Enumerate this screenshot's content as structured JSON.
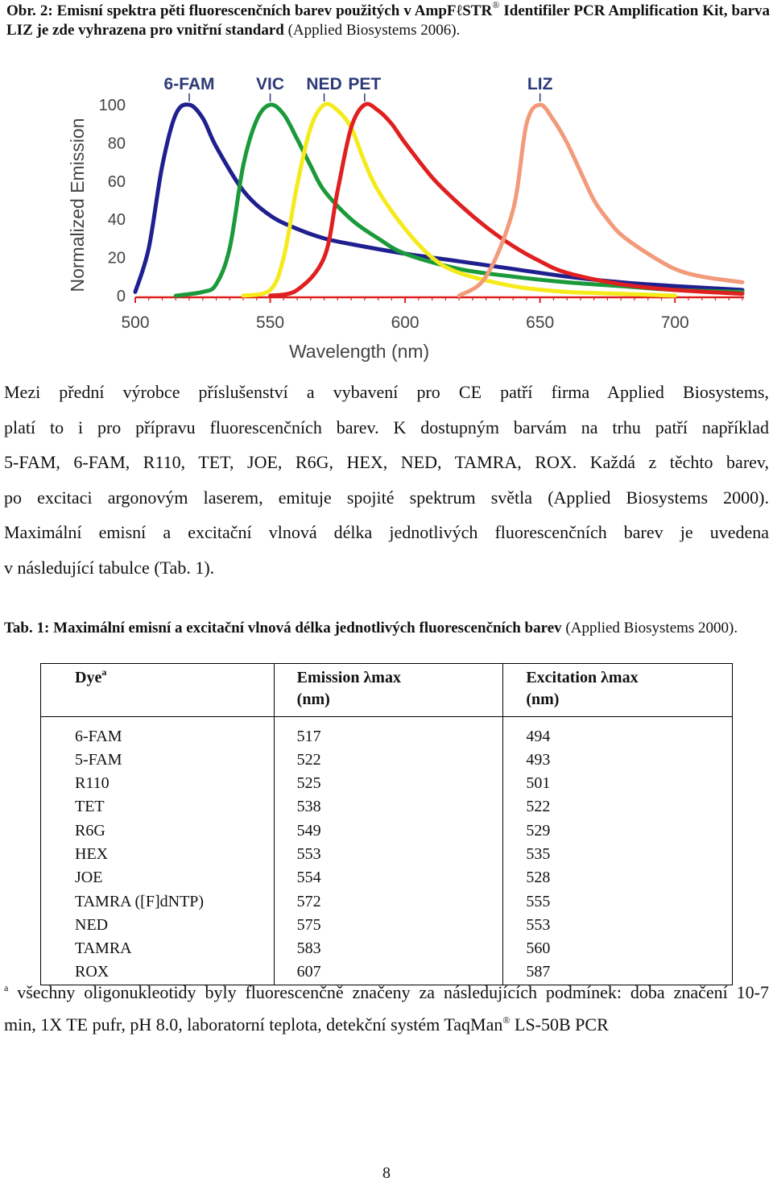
{
  "caption": {
    "label": "Obr. 2: Emisní spektra pěti fluorescenčních barev použitých v AmpFℓSTR",
    "registered": "®",
    "bold_rest": " Identifiler PCR Amplification Kit, barva LIZ je zde vyhrazena pro vnitřní standard",
    "source": " (Applied Biosystems 2006)."
  },
  "chart_data": {
    "type": "line",
    "ylabel": "Normalized Emission",
    "xlabel": "Wavelength (nm)",
    "xlim": [
      500,
      725
    ],
    "ylim": [
      0,
      100
    ],
    "x_ticks": [
      500,
      550,
      600,
      650,
      700
    ],
    "y_ticks": [
      0,
      20,
      40,
      60,
      80,
      100
    ],
    "legend_placement": "top labels above peaks",
    "series": [
      {
        "name": "6-FAM",
        "color": "#1f1f8f",
        "x": [
          500,
          505,
          510,
          515,
          520,
          525,
          530,
          540,
          550,
          560,
          570,
          580,
          600,
          620,
          640,
          660,
          680,
          700,
          725
        ],
        "y": [
          2,
          25,
          68,
          95,
          100,
          93,
          78,
          55,
          42,
          35,
          30,
          27,
          22,
          18,
          14,
          10,
          7,
          5,
          3
        ]
      },
      {
        "name": "VIC",
        "color": "#1a9a3a",
        "x": [
          515,
          525,
          530,
          535,
          540,
          545,
          550,
          555,
          560,
          565,
          570,
          580,
          590,
          600,
          620,
          640,
          660,
          680,
          700,
          725
        ],
        "y": [
          0,
          2,
          6,
          25,
          68,
          92,
          100,
          95,
          82,
          68,
          55,
          40,
          30,
          22,
          14,
          10,
          7,
          5,
          3,
          2
        ]
      },
      {
        "name": "NED",
        "color": "#f5ea1a",
        "x": [
          540,
          550,
          555,
          560,
          565,
          570,
          575,
          580,
          585,
          590,
          600,
          610,
          620,
          640,
          660,
          680,
          700
        ],
        "y": [
          0,
          3,
          20,
          58,
          88,
          100,
          97,
          88,
          70,
          55,
          35,
          20,
          12,
          5,
          2,
          1,
          0
        ]
      },
      {
        "name": "PET",
        "color": "#e02020",
        "x": [
          550,
          560,
          570,
          575,
          580,
          585,
          590,
          595,
          600,
          610,
          620,
          630,
          640,
          650,
          660,
          680,
          700,
          725
        ],
        "y": [
          0,
          3,
          20,
          55,
          88,
          100,
          97,
          90,
          80,
          62,
          48,
          36,
          26,
          18,
          12,
          6,
          3,
          1
        ]
      },
      {
        "name": "LIZ",
        "color": "#f29a7a",
        "x": [
          620,
          630,
          640,
          645,
          650,
          655,
          660,
          665,
          670,
          675,
          680,
          690,
          700,
          710,
          725
        ],
        "y": [
          0,
          10,
          45,
          90,
          100,
          92,
          80,
          65,
          50,
          40,
          32,
          22,
          14,
          10,
          7
        ]
      }
    ]
  },
  "paragraph": {
    "lines": [
      "Mezi přední výrobce příslušenství a vybavení pro CE patří firma Applied Biosystems,",
      "platí to i pro přípravu fluorescenčních barev. K dostupným barvám na trhu patří například",
      "5-FAM, 6-FAM, R110, TET, JOE, R6G, HEX, NED, TAMRA, ROX. Každá z těchto barev,",
      "po excitaci argonovým laserem, emituje spojité spektrum světla (Applied Biosystems 2000).",
      "Maximální emisní a excitační vlnová délka jednotlivých fluorescenčních barev je uvedena",
      "v následující tabulce (Tab. 1)."
    ]
  },
  "table_caption": {
    "bold": "Tab. 1: Maximální emisní a excitační vlnová délka jednotlivých fluorescenčních barev",
    "source": " (Applied Biosystems 2000)."
  },
  "table": {
    "headers": {
      "dye": "Dye",
      "dye_sup": "a",
      "emission_line1": "Emission λmax",
      "emission_line2": "(nm)",
      "excitation_line1": "Excitation λmax",
      "excitation_line2": "(nm)"
    },
    "rows": [
      {
        "dye": "6-FAM",
        "emission": "517",
        "excitation": "494"
      },
      {
        "dye": "5-FAM",
        "emission": "522",
        "excitation": "493"
      },
      {
        "dye": "R110",
        "emission": "525",
        "excitation": "501"
      },
      {
        "dye": "TET",
        "emission": "538",
        "excitation": "522"
      },
      {
        "dye": "R6G",
        "emission": "549",
        "excitation": "529"
      },
      {
        "dye": "HEX",
        "emission": "553",
        "excitation": "535"
      },
      {
        "dye": "JOE",
        "emission": "554",
        "excitation": "528"
      },
      {
        "dye": "TAMRA ([F]dNTP)",
        "emission": "572",
        "excitation": "555"
      },
      {
        "dye": "NED",
        "emission": "575",
        "excitation": "553"
      },
      {
        "dye": "TAMRA",
        "emission": "583",
        "excitation": "560"
      },
      {
        "dye": "ROX",
        "emission": "607",
        "excitation": "587"
      }
    ]
  },
  "footnote": {
    "marker": "a",
    "line1": " všechny oligonukleotidy byly fluorescenčně značeny za následujících podmínek: doba značení 10-7",
    "line2_a": "min, 1X TE pufr, pH 8.0, laboratorní teplota, detekční systém TaqMan",
    "registered": "®",
    "line2_b": " LS-50B PCR"
  },
  "page_number": "8"
}
